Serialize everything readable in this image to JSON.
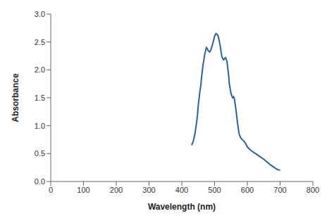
{
  "chart_data": {
    "type": "line",
    "xlabel": "Wavelength (nm)",
    "ylabel": "Absorbance",
    "xlim": [
      0,
      800
    ],
    "ylim": [
      0,
      3
    ],
    "xticks": [
      0,
      100,
      200,
      300,
      400,
      500,
      600,
      700,
      800
    ],
    "yticks": [
      {
        "value": 0,
        "label": "0.0"
      },
      {
        "value": 0.5,
        "label": "0.5"
      },
      {
        "value": 1,
        "label": "1.0"
      },
      {
        "value": 1.5,
        "label": "1.5"
      },
      {
        "value": 2,
        "label": "2.0"
      },
      {
        "value": 2.5,
        "label": "2.5"
      },
      {
        "value": 3,
        "label": "3.0"
      }
    ],
    "color": "#2a5fa0",
    "grid": false,
    "x": [
      430,
      435,
      440,
      445,
      448,
      450,
      453,
      455,
      458,
      460,
      463,
      465,
      468,
      470,
      473,
      475,
      478,
      480,
      483,
      485,
      488,
      490,
      492,
      495,
      498,
      500,
      502,
      505,
      507,
      508,
      510,
      512,
      515,
      518,
      520,
      522,
      525,
      528,
      530,
      533,
      535,
      538,
      540,
      543,
      545,
      548,
      550,
      553,
      555,
      558,
      560,
      565,
      570,
      575,
      580,
      585,
      590,
      595,
      600,
      610,
      620,
      630,
      640,
      650,
      660,
      670,
      680,
      690,
      700
    ],
    "values": [
      0.65,
      0.72,
      0.85,
      1.05,
      1.2,
      1.35,
      1.5,
      1.6,
      1.72,
      1.85,
      2.0,
      2.1,
      2.2,
      2.28,
      2.35,
      2.4,
      2.38,
      2.35,
      2.33,
      2.32,
      2.35,
      2.38,
      2.42,
      2.48,
      2.55,
      2.6,
      2.63,
      2.65,
      2.64,
      2.63,
      2.62,
      2.58,
      2.5,
      2.4,
      2.32,
      2.25,
      2.2,
      2.18,
      2.2,
      2.22,
      2.2,
      2.15,
      2.05,
      1.9,
      1.75,
      1.65,
      1.58,
      1.53,
      1.5,
      1.52,
      1.5,
      1.3,
      1.05,
      0.85,
      0.78,
      0.75,
      0.72,
      0.68,
      0.62,
      0.56,
      0.52,
      0.48,
      0.44,
      0.4,
      0.35,
      0.3,
      0.26,
      0.22,
      0.2
    ]
  }
}
